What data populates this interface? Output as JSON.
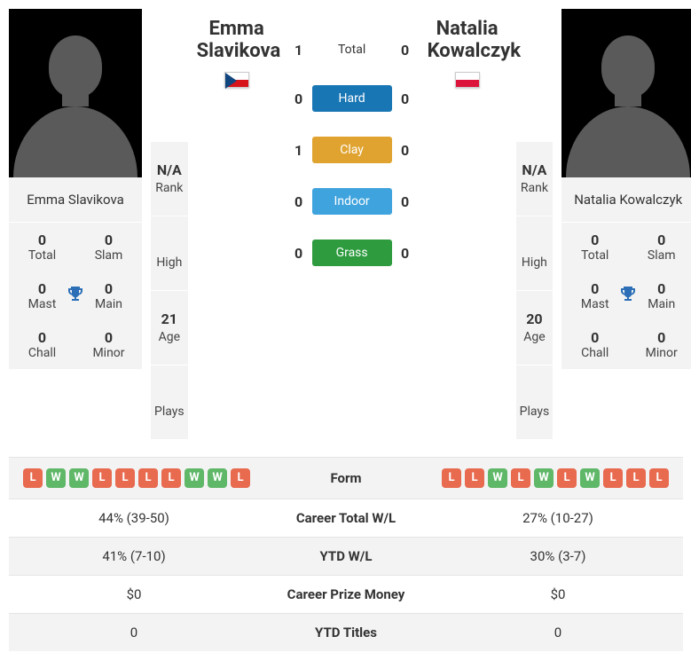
{
  "player1": {
    "name": "Emma Slavikova",
    "firstName": "Emma",
    "lastName": "Slavikova",
    "flagColors": {
      "top": "#ffffff",
      "bottom": "#d7141a",
      "triangle": "#11457e"
    },
    "rank": "N/A",
    "high": "",
    "age": "21",
    "plays": "",
    "titles": {
      "total": "0",
      "slam": "0",
      "mast": "0",
      "main": "0",
      "chall": "0",
      "minor": "0"
    },
    "form": [
      "L",
      "W",
      "W",
      "L",
      "L",
      "L",
      "L",
      "W",
      "W",
      "L"
    ],
    "careerWL": "44% (39-50)",
    "ytdWL": "41% (7-10)",
    "careerPrize": "$0",
    "ytdTitles": "0"
  },
  "player2": {
    "name": "Natalia Kowalczyk",
    "firstName": "Natalia",
    "lastName": "Kowalczyk",
    "flagColors": {
      "top": "#ffffff",
      "bottom": "#dc143c"
    },
    "rank": "N/A",
    "high": "",
    "age": "20",
    "plays": "",
    "titles": {
      "total": "0",
      "slam": "0",
      "mast": "0",
      "main": "0",
      "chall": "0",
      "minor": "0"
    },
    "form": [
      "L",
      "L",
      "W",
      "L",
      "W",
      "L",
      "W",
      "L",
      "L",
      "L"
    ],
    "careerWL": "27% (10-27)",
    "ytdWL": "30% (3-7)",
    "careerPrize": "$0",
    "ytdTitles": "0"
  },
  "surfaces": [
    {
      "label": "Total",
      "p1": "1",
      "p2": "0",
      "color": "",
      "plain": true
    },
    {
      "label": "Hard",
      "p1": "0",
      "p2": "0",
      "color": "#1976b5"
    },
    {
      "label": "Clay",
      "p1": "1",
      "p2": "0",
      "color": "#e0a330"
    },
    {
      "label": "Indoor",
      "p1": "0",
      "p2": "0",
      "color": "#3fa3dd"
    },
    {
      "label": "Grass",
      "p1": "0",
      "p2": "0",
      "color": "#2e9b3f"
    }
  ],
  "labels": {
    "rank": "Rank",
    "high": "High",
    "age": "Age",
    "plays": "Plays",
    "total": "Total",
    "slam": "Slam",
    "mast": "Mast",
    "main": "Main",
    "chall": "Chall",
    "minor": "Minor",
    "form": "Form",
    "careerWL": "Career Total W/L",
    "ytdWL": "YTD W/L",
    "careerPrize": "Career Prize Money",
    "ytdTitles": "YTD Titles"
  }
}
